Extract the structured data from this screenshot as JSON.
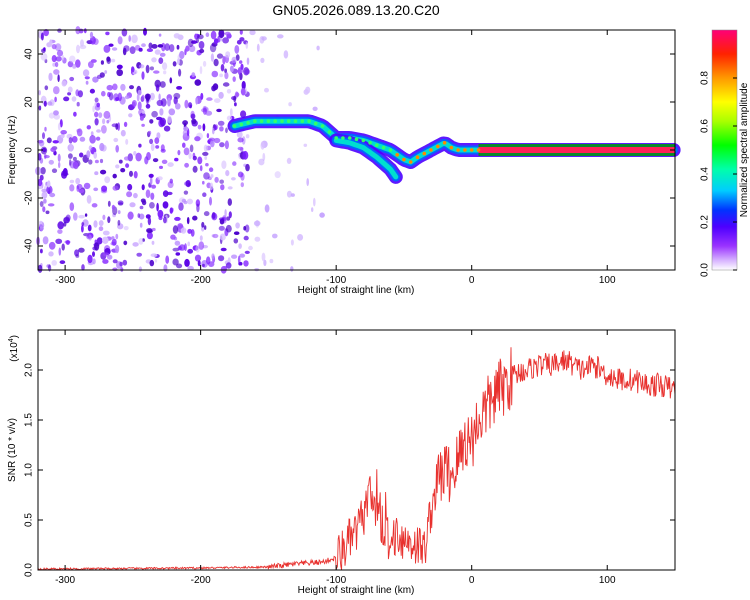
{
  "title": "GN05.2026.089.13.20.C20",
  "chart_data": [
    {
      "type": "heatmap",
      "xlabel": "Height of straight line (km)",
      "ylabel": "Frequency (Hz)",
      "xlim": [
        -320,
        150
      ],
      "ylim": [
        -50,
        50
      ],
      "xticks": [
        -300,
        -200,
        -100,
        0,
        100
      ],
      "yticks": [
        -40,
        -20,
        0,
        20,
        40
      ],
      "colorbar": {
        "label": "Normalized spectral amplitude",
        "range": [
          0,
          1
        ],
        "ticks": [
          0.0,
          0.2,
          0.4,
          0.6,
          0.8
        ]
      },
      "ridge": {
        "x": [
          -175,
          -160,
          -140,
          -120,
          -110,
          -100,
          -90,
          -80,
          -70,
          -60,
          -50,
          -45,
          -40,
          -30,
          -20,
          -15,
          -10,
          0,
          20,
          50,
          80,
          100,
          150
        ],
        "y": [
          10,
          12,
          12,
          12,
          10,
          5,
          5,
          4,
          2,
          0,
          -4,
          -5,
          -3,
          0,
          3,
          1,
          0,
          0,
          0,
          0,
          0,
          0,
          0
        ]
      },
      "branch": {
        "x": [
          -100,
          -90,
          -80,
          -70,
          -60,
          -55
        ],
        "y": [
          4,
          3,
          1,
          -3,
          -8,
          -12
        ]
      }
    },
    {
      "type": "line",
      "xlabel": "Height of straight line (km)",
      "ylabel": "SNR (10 * v/v)",
      "yscale_label": "(x10",
      "yscale_exp": "4",
      "xlim": [
        -320,
        150
      ],
      "ylim": [
        0,
        2.4
      ],
      "xticks": [
        -300,
        -200,
        -100,
        0,
        100
      ],
      "yticks": [
        "0.0",
        "0.5",
        "1.0",
        "1.5",
        "2.0"
      ],
      "color": "#e8312e",
      "x": [
        -320,
        -200,
        -150,
        -130,
        -110,
        -100,
        -95,
        -90,
        -85,
        -80,
        -75,
        -70,
        -65,
        -60,
        -55,
        -50,
        -45,
        -40,
        -35,
        -30,
        -25,
        -20,
        -15,
        -10,
        -5,
        0,
        5,
        10,
        15,
        20,
        25,
        30,
        40,
        50,
        60,
        70,
        80,
        90,
        100,
        110,
        120,
        130,
        140,
        150
      ],
      "y": [
        0.01,
        0.02,
        0.03,
        0.06,
        0.08,
        0.12,
        0.2,
        0.3,
        0.38,
        0.55,
        0.72,
        0.5,
        0.4,
        0.3,
        0.38,
        0.3,
        0.28,
        0.25,
        0.2,
        0.6,
        0.9,
        1.0,
        0.95,
        1.1,
        1.3,
        1.3,
        1.5,
        1.6,
        1.7,
        1.8,
        1.85,
        1.95,
        2.0,
        2.05,
        2.05,
        2.1,
        2.0,
        2.05,
        1.95,
        1.9,
        1.9,
        1.85,
        1.85,
        1.8
      ]
    }
  ]
}
